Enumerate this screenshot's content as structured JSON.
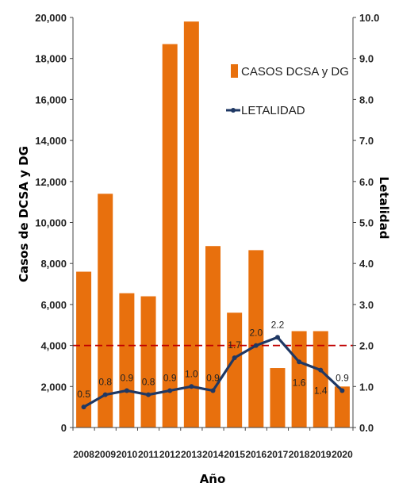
{
  "chart_data": {
    "type": "bar",
    "categories": [
      "2008",
      "2009",
      "2010",
      "2011",
      "2012",
      "2013",
      "2014",
      "2015",
      "2016",
      "2017",
      "2018",
      "2019",
      "2020"
    ],
    "series": [
      {
        "name": "CASOS DCSA y DG",
        "type": "bar",
        "axis": "left",
        "color": "#E8700D",
        "values": [
          7600,
          11400,
          6550,
          6400,
          18700,
          19800,
          8850,
          5600,
          8650,
          2900,
          4700,
          4700,
          2000
        ]
      },
      {
        "name": "LETALIDAD",
        "type": "line",
        "axis": "right",
        "color": "#1F3864",
        "values": [
          0.5,
          0.8,
          0.9,
          0.8,
          0.9,
          1.0,
          0.9,
          1.7,
          2.0,
          2.2,
          1.6,
          1.4,
          0.9
        ],
        "labels": [
          "0.5",
          "0.8",
          "0.9",
          "0.8",
          "0.9",
          "1.0",
          "0.9",
          "1.7",
          "2.0",
          "2.2",
          "1.6",
          "1.4",
          "0.9"
        ]
      }
    ],
    "threshold": {
      "axis": "right",
      "value": 2.0,
      "color": "#C00000",
      "style": "dashed"
    },
    "xlabel": "Año",
    "ylabel": "Casos de DCSA y DG",
    "y2label": "Letalidad",
    "ylim": [
      0,
      20000
    ],
    "y2lim": [
      0,
      10
    ],
    "yticks": [
      "0",
      "2,000",
      "4,000",
      "6,000",
      "8,000",
      "10,000",
      "12,000",
      "14,000",
      "16,000",
      "18,000",
      "20,000"
    ],
    "y2ticks": [
      "0.0",
      "1.0",
      "2.0",
      "3.0",
      "4.0",
      "5.0",
      "6.0",
      "7.0",
      "8.0",
      "9.0",
      "10.0"
    ],
    "legend_position": "top-right",
    "grid": false
  }
}
